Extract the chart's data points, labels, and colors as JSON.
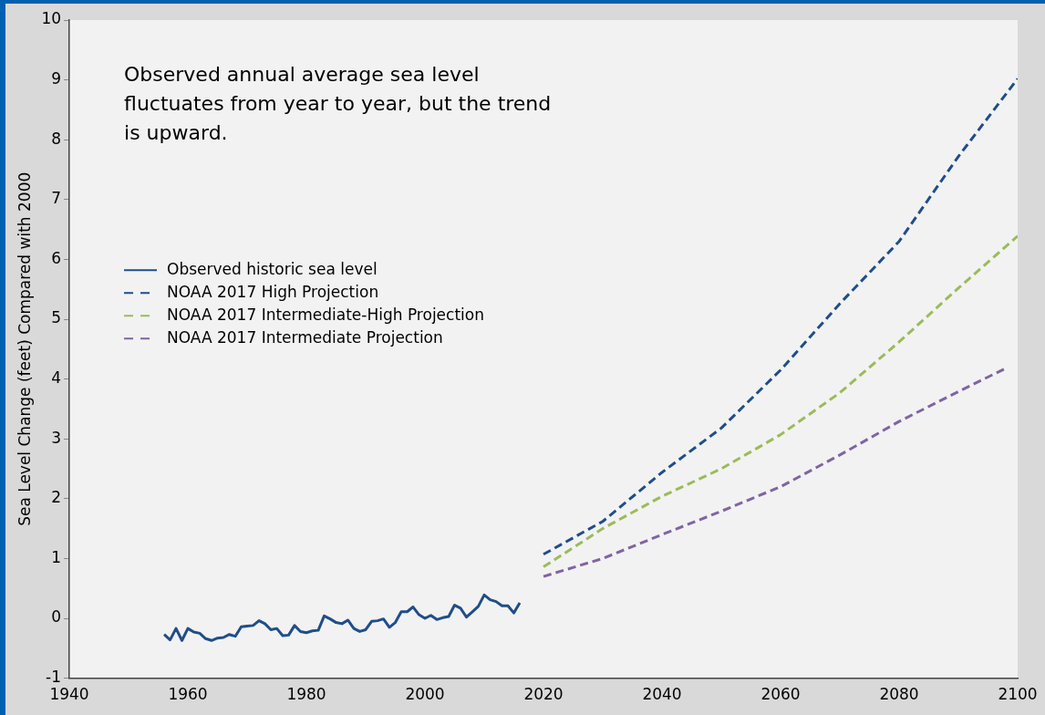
{
  "chart_data": {
    "type": "line",
    "ylabel": "Sea Level Change (feet) Compared with 2000",
    "annotations": [
      "Observed annual average sea level fluctuates from year to year, but the trend is upward."
    ],
    "xlim": [
      1940,
      2100
    ],
    "xticks": [
      1940,
      1960,
      1980,
      2000,
      2020,
      2040,
      2060,
      2080,
      2100
    ],
    "ylim": [
      -1,
      10
    ],
    "yticks": [
      -1,
      0,
      1,
      2,
      3,
      4,
      5,
      6,
      7,
      8,
      9,
      10
    ],
    "grid": false,
    "legend": "left",
    "marker": "none",
    "series": [
      {
        "name": "Observed historic sea level",
        "color": "#1f4e89",
        "line_style": "solid",
        "x": [
          1956,
          1957,
          1958,
          1959,
          1960,
          1961,
          1962,
          1963,
          1964,
          1965,
          1966,
          1967,
          1968,
          1969,
          1970,
          1971,
          1972,
          1973,
          1974,
          1975,
          1976,
          1977,
          1978,
          1979,
          1980,
          1981,
          1982,
          1983,
          1984,
          1985,
          1986,
          1987,
          1988,
          1989,
          1990,
          1991,
          1992,
          1993,
          1994,
          1995,
          1996,
          1997,
          1998,
          1999,
          2000,
          2001,
          2002,
          2003,
          2004,
          2005,
          2006,
          2007,
          2008,
          2009,
          2010,
          2011,
          2012,
          2013,
          2014,
          2015,
          2016
        ],
        "values": [
          -0.27,
          -0.36,
          -0.17,
          -0.37,
          -0.17,
          -0.23,
          -0.25,
          -0.34,
          -0.37,
          -0.33,
          -0.32,
          -0.27,
          -0.3,
          -0.14,
          -0.13,
          -0.12,
          -0.04,
          -0.09,
          -0.19,
          -0.17,
          -0.29,
          -0.28,
          -0.12,
          -0.22,
          -0.24,
          -0.21,
          -0.2,
          0.04,
          -0.01,
          -0.07,
          -0.09,
          -0.03,
          -0.17,
          -0.22,
          -0.19,
          -0.05,
          -0.04,
          -0.01,
          -0.15,
          -0.07,
          0.11,
          0.11,
          0.19,
          0.06,
          0.0,
          0.05,
          -0.02,
          0.01,
          0.03,
          0.22,
          0.17,
          0.02,
          0.11,
          0.2,
          0.39,
          0.31,
          0.28,
          0.21,
          0.21,
          0.09,
          0.26
        ]
      },
      {
        "name": "NOAA 2017 High Projection",
        "color": "#1f4e89",
        "line_style": "dashed",
        "x": [
          2020,
          2030,
          2040,
          2050,
          2060,
          2070,
          2080,
          2090,
          2100
        ],
        "values": [
          1.07,
          1.62,
          2.44,
          3.18,
          4.15,
          5.26,
          6.3,
          7.72,
          9.02
        ]
      },
      {
        "name": "NOAA 2017 Intermediate-High Projection",
        "color": "#9bbb59",
        "line_style": "dashed",
        "x": [
          2020,
          2030,
          2040,
          2050,
          2060,
          2070,
          2080,
          2090,
          2100
        ],
        "values": [
          0.86,
          1.5,
          2.04,
          2.5,
          3.07,
          3.77,
          4.62,
          5.52,
          6.39
        ]
      },
      {
        "name": "NOAA 2017 Intermediate Projection",
        "color": "#8064a2",
        "line_style": "dashed",
        "x": [
          2020,
          2030,
          2040,
          2050,
          2060,
          2070,
          2080,
          2090,
          2098
        ],
        "values": [
          0.7,
          1.0,
          1.4,
          1.79,
          2.2,
          2.73,
          3.29,
          3.79,
          4.18
        ]
      }
    ]
  }
}
